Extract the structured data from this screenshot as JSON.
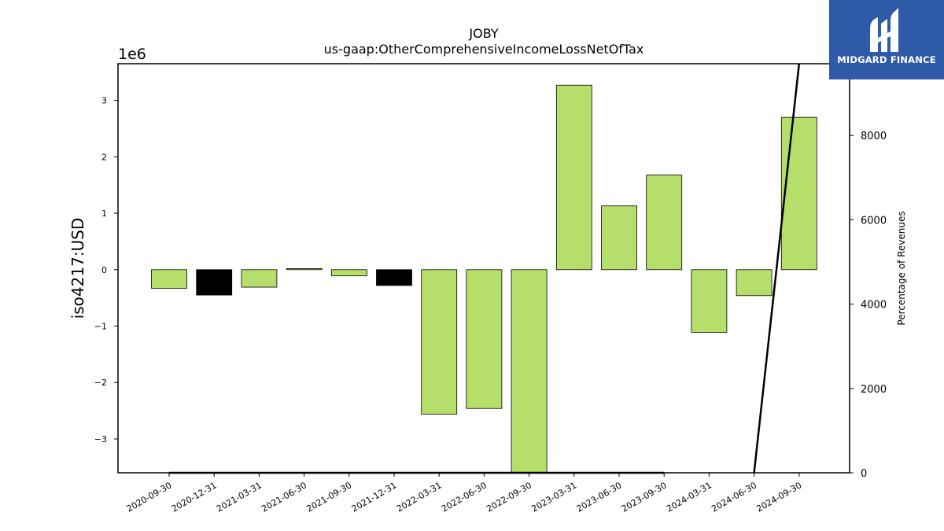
{
  "chart_data": {
    "type": "bar",
    "title": "JOBY",
    "subtitle": "us-gaap:OtherComprehensiveIncomeLossNetOfTax",
    "ylabel": "iso4217:USD",
    "y_offset_label": "1e6",
    "y2label": "Percentage of Revenues",
    "categories": [
      "2020-09-30",
      "2020-12-31",
      "2021-03-31",
      "2021-06-30",
      "2021-09-30",
      "2021-12-31",
      "2022-03-31",
      "2022-06-30",
      "2022-09-30",
      "2023-03-31",
      "2023-06-30",
      "2023-09-30",
      "2024-03-31",
      "2024-06-30",
      "2024-09-30"
    ],
    "values": [
      -0.33,
      -0.45,
      -0.31,
      0.02,
      -0.11,
      -0.28,
      -2.56,
      -2.46,
      -3.75,
      3.27,
      1.13,
      1.68,
      -1.11,
      -0.46,
      2.7
    ],
    "bar_colors": [
      "#b5de6b",
      "#000000",
      "#b5de6b",
      "#b5de6b",
      "#b5de6b",
      "#000000",
      "#b5de6b",
      "#b5de6b",
      "#b5de6b",
      "#b5de6b",
      "#b5de6b",
      "#b5de6b",
      "#b5de6b",
      "#b5de6b",
      "#b5de6b"
    ],
    "ylim": [
      -3.6,
      3.65
    ],
    "yticks": [
      -3,
      -2,
      -1,
      0,
      1,
      2,
      3
    ],
    "ytick_labels": [
      "−3",
      "−2",
      "−1",
      "0",
      "1",
      "2",
      "3"
    ],
    "y2lim": [
      0,
      9700
    ],
    "y2ticks": [
      0,
      2000,
      4000,
      6000,
      8000
    ],
    "y2tick_labels": [
      "0",
      "2000",
      "4000",
      "6000",
      "8000"
    ],
    "secondary_line": {
      "color": "#000000",
      "x": [
        "2020-09-30",
        "2020-12-31",
        "2021-03-31",
        "2021-06-30",
        "2021-09-30",
        "2021-12-31",
        "2022-03-31",
        "2022-06-30",
        "2022-09-30",
        "2023-03-31",
        "2023-06-30",
        "2023-09-30",
        "2024-03-31",
        "2024-06-30",
        "2024-09-30"
      ],
      "y": [
        0,
        0,
        0,
        0,
        0,
        0,
        0,
        0,
        0,
        0,
        0,
        0,
        null,
        0,
        9700
      ]
    },
    "grid": false,
    "legend": "none"
  },
  "logo": {
    "text": "MIDGARD FINANCE",
    "color": "#2f5aa8"
  }
}
